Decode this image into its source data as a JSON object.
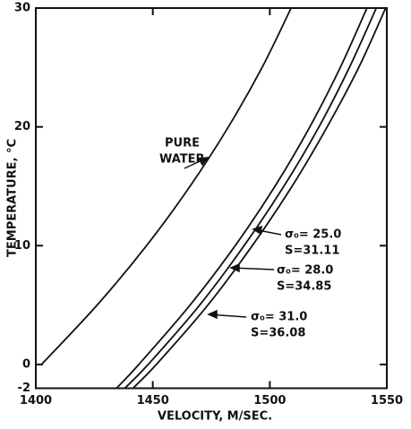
{
  "chart_data": {
    "type": "line",
    "xlabel": "VELOCITY, M/SEC.",
    "ylabel": "TEMPERATURE, °C",
    "xlim": [
      1400,
      1550
    ],
    "xticks": [
      1400,
      1450,
      1500,
      1550
    ],
    "ylim": [
      -2,
      30
    ],
    "yticks": [
      -2,
      0,
      10,
      20,
      30
    ],
    "color": "#111111",
    "series": [
      {
        "label": [
          "PURE",
          "WATER"
        ],
        "x": [
          1402.4,
          1426.2,
          1447.3,
          1465.9,
          1482.3,
          1496.7,
          1509.1
        ],
        "y": [
          0,
          5,
          10,
          15,
          20,
          25,
          30
        ]
      },
      {
        "label": [
          "σ₀= 25.0",
          "S=31.11"
        ],
        "x": [
          1434.5,
          1444.0,
          1465.9,
          1485.2,
          1502.2,
          1517.1,
          1530.1,
          1541.5
        ],
        "y": [
          -2,
          0,
          5,
          10,
          15,
          20,
          25,
          30
        ]
      },
      {
        "label": [
          "σ₀= 28.0",
          "S=34.85"
        ],
        "x": [
          1438,
          1448,
          1470,
          1489,
          1506,
          1521,
          1534,
          1545.5
        ],
        "y": [
          -2,
          0,
          5,
          10,
          15,
          20,
          25,
          30
        ]
      },
      {
        "label": [
          "σ₀= 31.0",
          "S=36.08"
        ],
        "x": [
          1441.5,
          1451.5,
          1473.5,
          1492.5,
          1509.5,
          1524.5,
          1538,
          1549.5
        ],
        "y": [
          -2,
          0,
          5,
          10,
          15,
          20,
          25,
          30
        ]
      }
    ]
  }
}
